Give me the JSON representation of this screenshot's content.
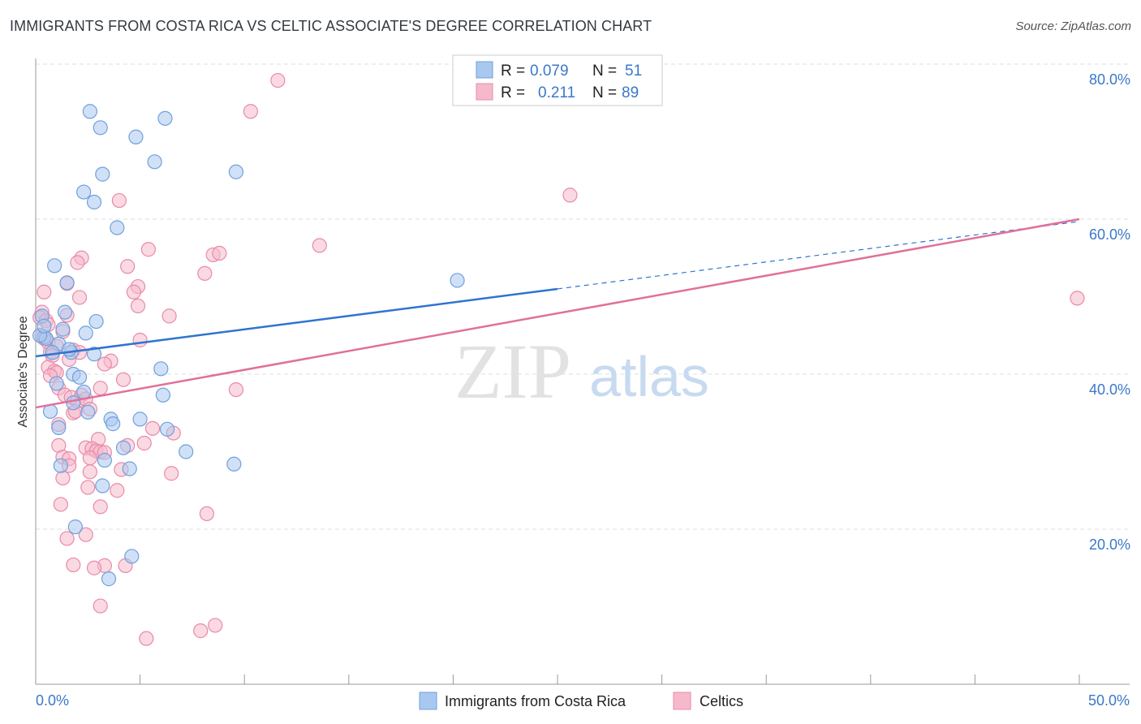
{
  "header": {
    "title": "IMMIGRANTS FROM COSTA RICA VS CELTIC ASSOCIATE'S DEGREE CORRELATION CHART",
    "source": "Source: ZipAtlas.com"
  },
  "watermark": {
    "zip": "ZIP",
    "atlas": "atlas"
  },
  "legend": {
    "rows": [
      {
        "r_label": "R =",
        "r_value": "0.079",
        "n_label": "N =",
        "n_value": "51"
      },
      {
        "r_label": "R =",
        "r_value": "0.211",
        "n_label": "N =",
        "n_value": "89"
      }
    ]
  },
  "bottom_legend": {
    "items": [
      {
        "label": "Immigrants from Costa Rica"
      },
      {
        "label": "Celtics"
      }
    ]
  },
  "colors": {
    "blue_fill": "#a9c8f0",
    "blue_stroke": "#6fa0dc",
    "blue_line": "#2f74cf",
    "pink_fill": "#f6b9cc",
    "pink_stroke": "#e98aa8",
    "pink_line": "#e0709a",
    "tick_text": "#3a78c9",
    "grid": "#dddddd"
  },
  "chart_data": {
    "type": "scatter",
    "title": "IMMIGRANTS FROM COSTA RICA VS CELTIC ASSOCIATE'S DEGREE CORRELATION CHART",
    "xlabel": "",
    "ylabel": "Associate's Degree",
    "xlim": [
      0,
      50
    ],
    "ylim": [
      0,
      80
    ],
    "x_tick_labels": [
      "0.0%",
      "50.0%"
    ],
    "y_tick_labels": [
      "20.0%",
      "40.0%",
      "60.0%",
      "80.0%"
    ],
    "y_ticks": [
      20,
      40,
      60,
      80
    ],
    "grid": true,
    "legend_position": "top-center",
    "series": [
      {
        "name": "Immigrants from Costa Rica",
        "r": 0.079,
        "n": 51,
        "trend": {
          "x_start": 0,
          "y_start": 42.3,
          "x_solid_end": 25,
          "y_solid_end": 51.0,
          "x_end": 50,
          "y_end": 59.7
        },
        "points": [
          [
            2.6,
            73.9
          ],
          [
            6.2,
            73.0
          ],
          [
            3.1,
            71.8
          ],
          [
            4.8,
            70.6
          ],
          [
            5.7,
            67.4
          ],
          [
            9.6,
            66.1
          ],
          [
            3.2,
            65.8
          ],
          [
            2.3,
            63.5
          ],
          [
            2.8,
            62.2
          ],
          [
            3.9,
            58.9
          ],
          [
            0.9,
            54.0
          ],
          [
            1.5,
            51.8
          ],
          [
            20.2,
            52.1
          ],
          [
            0.3,
            47.5
          ],
          [
            1.4,
            48.0
          ],
          [
            2.9,
            46.8
          ],
          [
            1.3,
            45.8
          ],
          [
            2.4,
            45.3
          ],
          [
            0.4,
            44.8
          ],
          [
            0.5,
            44.6
          ],
          [
            1.1,
            43.9
          ],
          [
            0.8,
            42.8
          ],
          [
            1.7,
            42.8
          ],
          [
            2.8,
            42.6
          ],
          [
            6.0,
            40.7
          ],
          [
            1.8,
            40.0
          ],
          [
            2.1,
            39.6
          ],
          [
            1.0,
            38.8
          ],
          [
            2.3,
            37.7
          ],
          [
            6.1,
            37.3
          ],
          [
            1.8,
            36.3
          ],
          [
            0.7,
            35.2
          ],
          [
            2.5,
            35.1
          ],
          [
            5.0,
            34.2
          ],
          [
            3.6,
            34.2
          ],
          [
            3.7,
            33.6
          ],
          [
            1.1,
            33.1
          ],
          [
            6.3,
            32.9
          ],
          [
            4.2,
            30.5
          ],
          [
            7.2,
            30.0
          ],
          [
            3.3,
            28.9
          ],
          [
            9.5,
            28.4
          ],
          [
            1.2,
            28.2
          ],
          [
            4.5,
            27.8
          ],
          [
            3.2,
            25.6
          ],
          [
            1.9,
            20.3
          ],
          [
            4.6,
            16.5
          ],
          [
            3.5,
            13.6
          ],
          [
            0.2,
            45.0
          ],
          [
            0.4,
            46.2
          ],
          [
            1.6,
            43.2
          ]
        ]
      },
      {
        "name": "Celtics",
        "r": 0.211,
        "n": 89,
        "trend": {
          "x_start": 0,
          "y_start": 35.7,
          "x_end": 50,
          "y_end": 60.0
        },
        "points": [
          [
            11.6,
            77.9
          ],
          [
            10.3,
            73.9
          ],
          [
            25.6,
            63.1
          ],
          [
            4.0,
            62.4
          ],
          [
            5.4,
            56.1
          ],
          [
            13.6,
            56.6
          ],
          [
            8.5,
            55.4
          ],
          [
            8.8,
            55.6
          ],
          [
            2.2,
            55.0
          ],
          [
            2.0,
            54.4
          ],
          [
            4.4,
            53.9
          ],
          [
            8.1,
            53.0
          ],
          [
            1.5,
            51.7
          ],
          [
            4.9,
            51.3
          ],
          [
            0.4,
            50.6
          ],
          [
            4.7,
            50.6
          ],
          [
            2.1,
            49.9
          ],
          [
            4.9,
            48.8
          ],
          [
            49.9,
            49.8
          ],
          [
            0.3,
            48.0
          ],
          [
            0.2,
            47.3
          ],
          [
            1.5,
            47.6
          ],
          [
            0.5,
            46.9
          ],
          [
            0.6,
            46.4
          ],
          [
            1.3,
            45.5
          ],
          [
            0.3,
            44.9
          ],
          [
            0.4,
            44.6
          ],
          [
            5.0,
            44.4
          ],
          [
            0.6,
            44.1
          ],
          [
            1.0,
            43.6
          ],
          [
            1.8,
            43.1
          ],
          [
            0.7,
            42.9
          ],
          [
            0.8,
            42.4
          ],
          [
            2.1,
            42.8
          ],
          [
            1.6,
            41.9
          ],
          [
            3.6,
            41.7
          ],
          [
            3.3,
            41.3
          ],
          [
            0.6,
            40.9
          ],
          [
            0.9,
            40.4
          ],
          [
            1.0,
            40.2
          ],
          [
            0.7,
            39.8
          ],
          [
            4.2,
            39.3
          ],
          [
            9.6,
            38.0
          ],
          [
            1.1,
            38.2
          ],
          [
            3.1,
            38.2
          ],
          [
            1.4,
            37.3
          ],
          [
            1.7,
            37.0
          ],
          [
            2.2,
            37.3
          ],
          [
            2.0,
            36.5
          ],
          [
            2.4,
            36.8
          ],
          [
            2.6,
            35.5
          ],
          [
            1.8,
            35.0
          ],
          [
            1.9,
            35.2
          ],
          [
            1.1,
            33.5
          ],
          [
            5.6,
            33.0
          ],
          [
            6.6,
            32.4
          ],
          [
            3.0,
            31.6
          ],
          [
            5.2,
            31.1
          ],
          [
            1.1,
            30.8
          ],
          [
            4.4,
            30.8
          ],
          [
            2.4,
            30.5
          ],
          [
            2.7,
            30.4
          ],
          [
            2.9,
            30.1
          ],
          [
            3.1,
            30.0
          ],
          [
            3.3,
            29.9
          ],
          [
            1.3,
            29.3
          ],
          [
            1.6,
            29.1
          ],
          [
            2.6,
            29.2
          ],
          [
            1.6,
            28.2
          ],
          [
            4.1,
            27.7
          ],
          [
            2.6,
            27.4
          ],
          [
            6.5,
            27.2
          ],
          [
            1.3,
            26.6
          ],
          [
            2.5,
            25.4
          ],
          [
            3.9,
            25.0
          ],
          [
            3.1,
            22.9
          ],
          [
            1.2,
            23.2
          ],
          [
            8.2,
            22.0
          ],
          [
            2.4,
            19.3
          ],
          [
            1.5,
            18.8
          ],
          [
            1.8,
            15.4
          ],
          [
            3.3,
            15.3
          ],
          [
            4.3,
            15.3
          ],
          [
            2.8,
            15.0
          ],
          [
            3.1,
            10.1
          ],
          [
            8.6,
            7.6
          ],
          [
            7.9,
            6.9
          ],
          [
            5.3,
            5.9
          ],
          [
            6.4,
            47.5
          ]
        ]
      }
    ]
  }
}
